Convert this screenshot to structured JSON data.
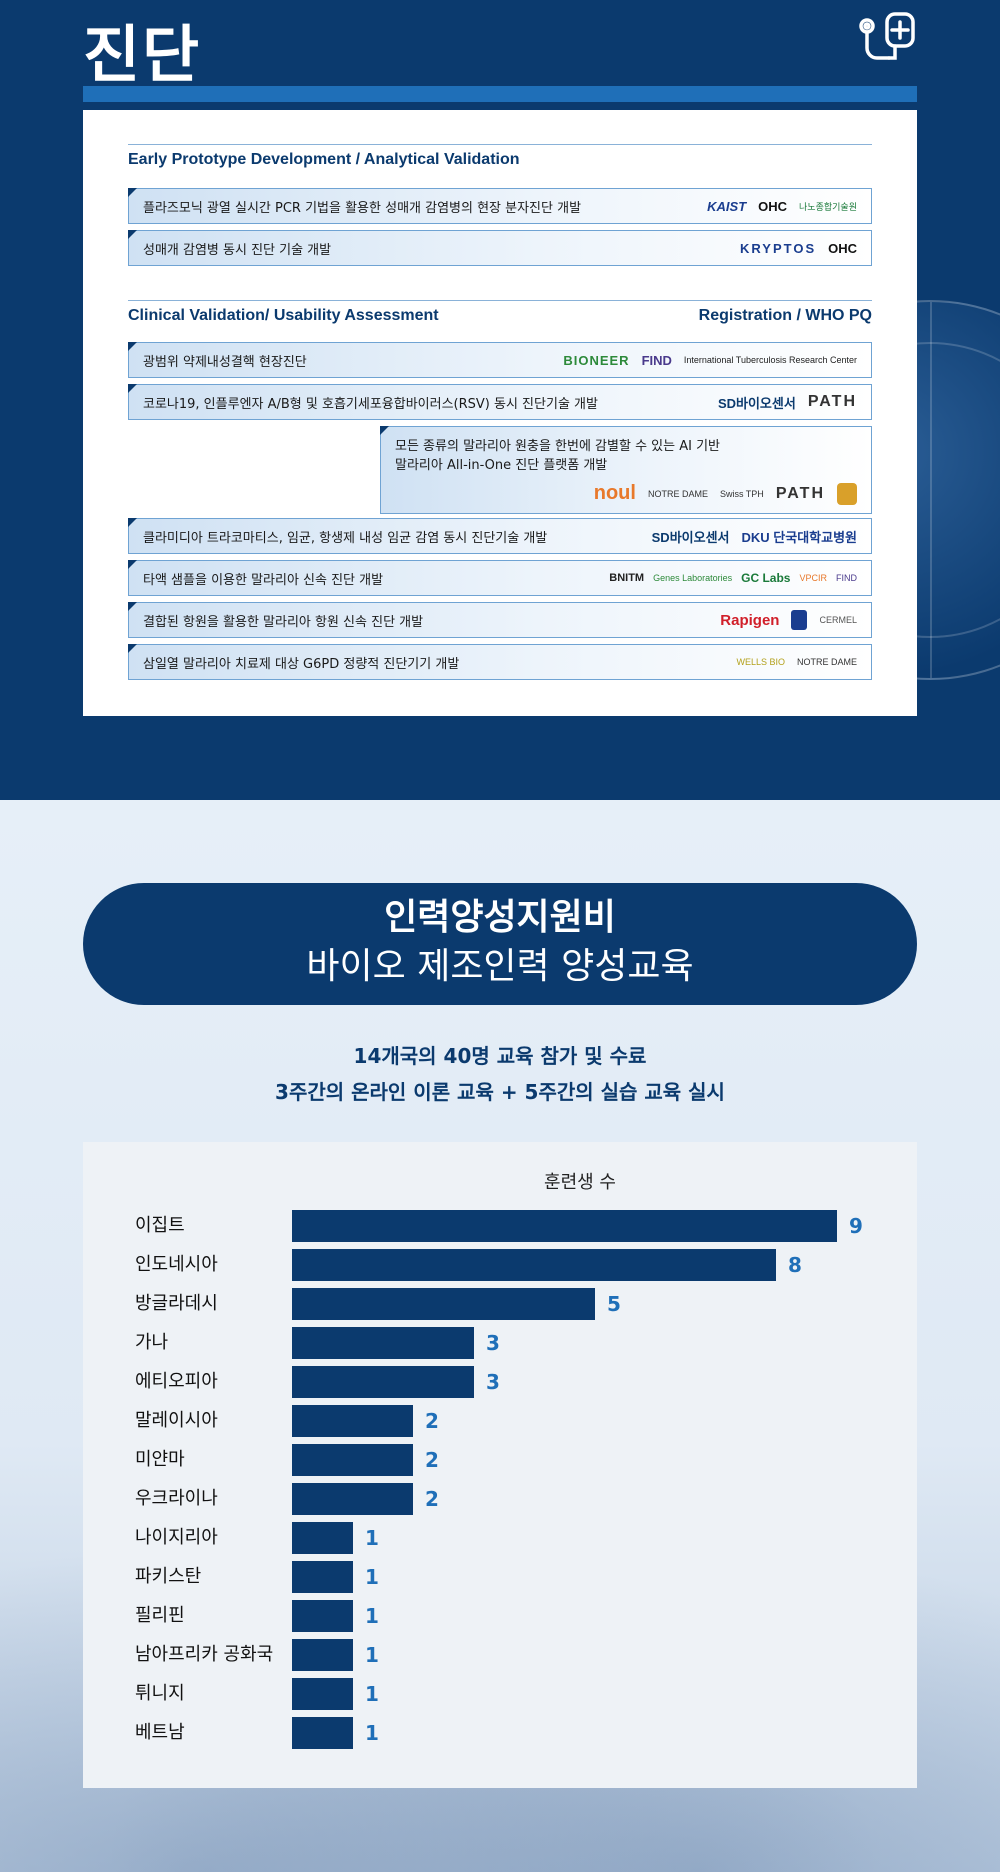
{
  "header": {
    "title": "진단"
  },
  "card": {
    "section1_title": "Early Prototype Development / Analytical Validation",
    "section1_rows": [
      {
        "text": "플라즈모닉 광열 실시간 PCR 기법을 활용한 성매개 감염병의 현장 분자진단 개발",
        "logos": [
          "KAIST",
          "OHC",
          "나노종합기술원"
        ]
      },
      {
        "text": "성매개 감염병 동시 진단 기술 개발",
        "logos": [
          "KRYPTOS",
          "OHC"
        ]
      }
    ],
    "section2_title": "Clinical Validation/ Usability Assessment",
    "section2_right": "Registration / WHO PQ",
    "section2_rows": [
      {
        "text": "광범위 약제내성결핵 현장진단",
        "logos": [
          "BIONEER",
          "FIND",
          "International Tuberculosis Research Center"
        ]
      },
      {
        "text": "코로나19, 인플루엔자 A/B형 및 호흡기세포융합바이러스(RSV) 동시 진단기술 개발",
        "logos": [
          "SD바이오센서",
          "PATH"
        ]
      },
      {
        "text": "모든 종류의 말라리아 원충을 한번에 감별할 수 있는 AI 기반",
        "text2": "말라리아 All-in-One 진단 플랫폼 개발",
        "logos": [
          "noul",
          "NOTRE DAME",
          "Swiss TPH",
          "PATH"
        ]
      },
      {
        "text": "클라미디아 트라코마티스, 임균, 항생제 내성 임균 감염 동시 진단기술 개발",
        "logos": [
          "SD바이오센서",
          "DKU 단국대학교병원"
        ]
      },
      {
        "text": "타액 샘플을 이용한 말라리아 신속 진단 개발",
        "logos": [
          "BNITM",
          "Genes Laboratories",
          "GC Labs",
          "VPCIR",
          "FIND"
        ]
      },
      {
        "text": "결합된 항원을 활용한 말라리아 항원 신속 진단 개발",
        "logos": [
          "Rapigen",
          "CERMEL"
        ]
      },
      {
        "text": "삼일열 말라리아 치료제 대상 G6PD 정량적 진단기기 개발",
        "logos": [
          "WELLS BIO",
          "NOTRE DAME"
        ]
      }
    ]
  },
  "training": {
    "title": "인력양성지원비",
    "subtitle": "바이오 제조인력 양성교육",
    "summary1": "14개국의 40명 교육 참가 및 수료",
    "summary2": "3주간의 온라인 이론 교육 + 5주간의 실습 교육 실시"
  },
  "colors": {
    "navy": "#0b3a6e",
    "accent_blue": "#1f6fb8"
  },
  "chart_data": {
    "type": "bar",
    "orientation": "horizontal",
    "title": "훈련생 수",
    "categories": [
      "이집트",
      "인도네시아",
      "방글라데시",
      "가나",
      "에티오피아",
      "말레이시아",
      "미얀마",
      "우크라이나",
      "나이지리아",
      "파키스탄",
      "필리핀",
      "남아프리카 공화국",
      "튀니지",
      "베트남"
    ],
    "values": [
      9,
      8,
      5,
      3,
      3,
      2,
      2,
      2,
      1,
      1,
      1,
      1,
      1,
      1
    ],
    "xlim": [
      0,
      9
    ],
    "grid": false,
    "data_labels": true
  }
}
